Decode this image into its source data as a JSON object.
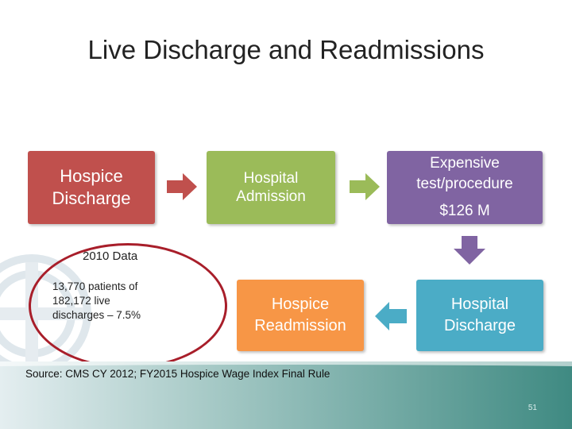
{
  "title": "Live Discharge and Readmissions",
  "boxes": {
    "hospice_discharge": {
      "line1": "Hospice",
      "line2": "Discharge"
    },
    "hospital_admission": {
      "line1": "Hospital",
      "line2": "Admission"
    },
    "expensive_test": {
      "line1": "Expensive",
      "line2": "test/procedure",
      "cost": "$126 M"
    },
    "hospice_readmission": {
      "line1": "Hospice",
      "line2": "Readmission"
    },
    "hospital_discharge": {
      "line1": "Hospital",
      "line2": "Discharge"
    }
  },
  "data_note": {
    "label": "2010 Data",
    "line1": "13,770 patients of",
    "line2": "182,172 live",
    "line3": "discharges – 7.5%"
  },
  "source": "Source:  CMS CY 2012; FY2015 Hospice Wage Index Final Rule",
  "page_number": "51",
  "colors": {
    "hospice_discharge": "#c0504d",
    "hospital_admission": "#9bbb59",
    "expensive_test": "#8064a2",
    "hospice_readmission": "#f79646",
    "hospital_discharge": "#4bacc6",
    "ellipse": "#a81e2a",
    "footer": "#4a8f87"
  }
}
